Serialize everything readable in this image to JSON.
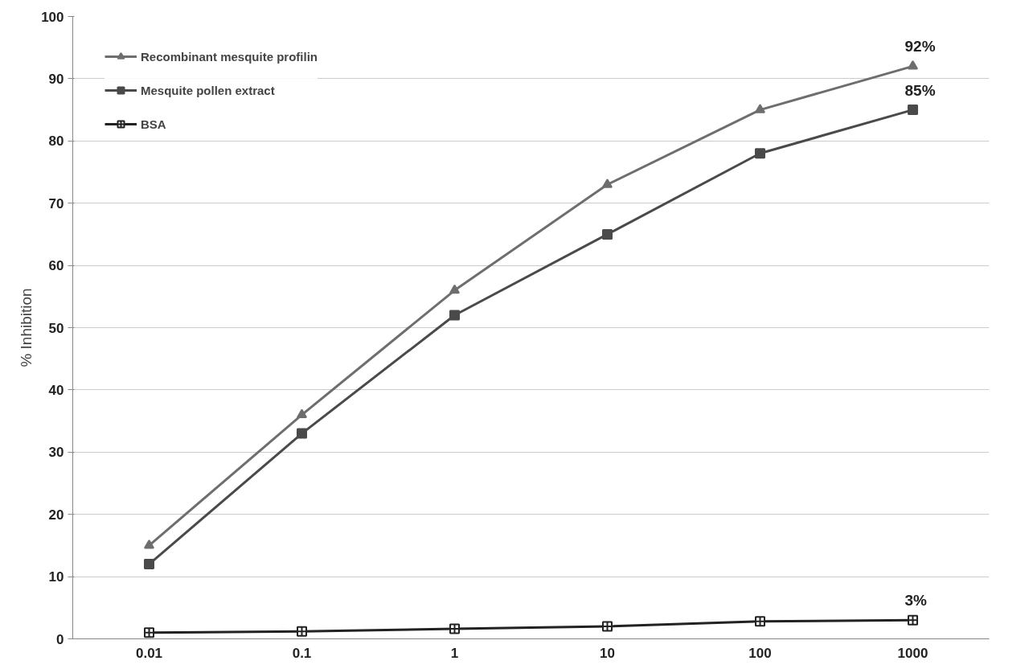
{
  "chart_data": {
    "type": "line",
    "ylabel": "% Inhibition",
    "categories": [
      "0.01",
      "0.1",
      "1",
      "10",
      "100",
      "1000"
    ],
    "series": [
      {
        "name": "Recombinant mesquite profilin",
        "color": "#6e6e6e",
        "marker": "triangle",
        "values": [
          15,
          36,
          56,
          73,
          85,
          92
        ]
      },
      {
        "name": "Mesquite pollen extract",
        "color": "#4a4a4a",
        "marker": "square",
        "values": [
          12,
          33,
          52,
          65,
          78,
          85
        ]
      },
      {
        "name": "BSA",
        "color": "#222222",
        "marker": "cross",
        "values": [
          1,
          1.2,
          1.6,
          2,
          2.8,
          3
        ]
      }
    ],
    "ylim": [
      0,
      100
    ],
    "yticks": [
      0,
      10,
      20,
      30,
      40,
      50,
      60,
      70,
      80,
      90,
      100
    ],
    "grid": "y",
    "legend": "top left",
    "line_style": "solid",
    "annotations": [
      {
        "text": "92%",
        "x": "1000",
        "y": 92
      },
      {
        "text": "85%",
        "x": "1000",
        "y": 85
      },
      {
        "text": "3%",
        "x": "1000",
        "y": 3
      }
    ]
  }
}
